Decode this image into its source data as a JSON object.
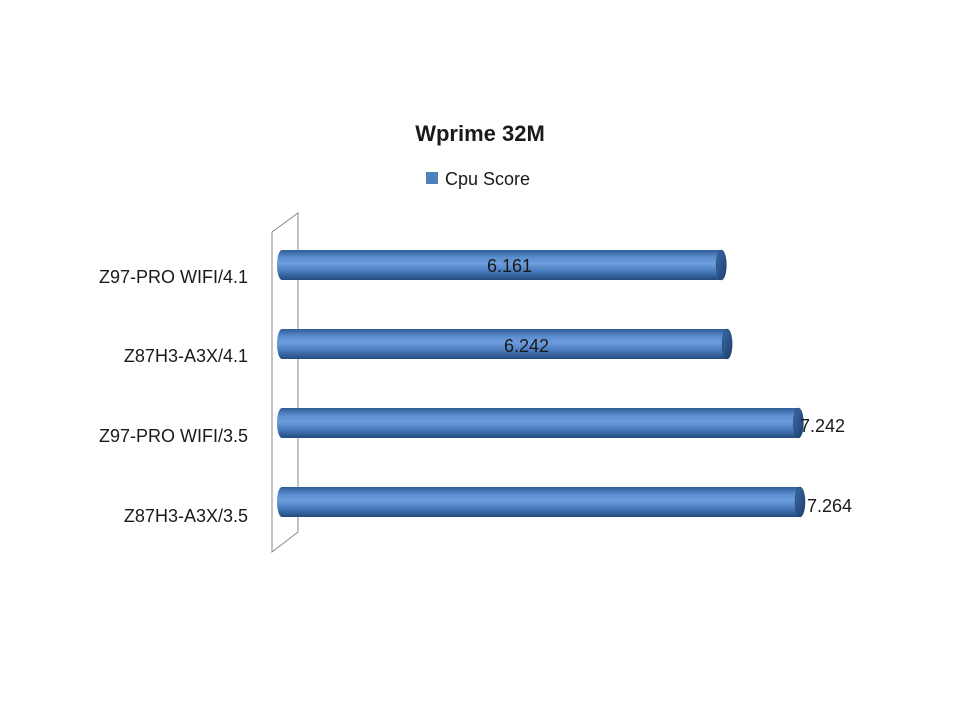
{
  "chart_data": {
    "type": "bar",
    "orientation": "horizontal",
    "title": "Wprime 32M",
    "categories": [
      "Z97-PRO WIFI/4.1",
      "Z87H3-A3X/4.1",
      "Z97-PRO WIFI/3.5",
      "Z87H3-A3X/3.5"
    ],
    "series": [
      {
        "name": "Cpu Score",
        "values": [
          6.161,
          6.242,
          7.242,
          7.264
        ],
        "labels": [
          "6.161",
          "6.242",
          "7.242",
          "7.264"
        ],
        "color": "#4f81bd"
      }
    ],
    "xlim": [
      0,
      7.264
    ],
    "legend": "top",
    "grid": false,
    "xlabel": "",
    "ylabel": ""
  }
}
